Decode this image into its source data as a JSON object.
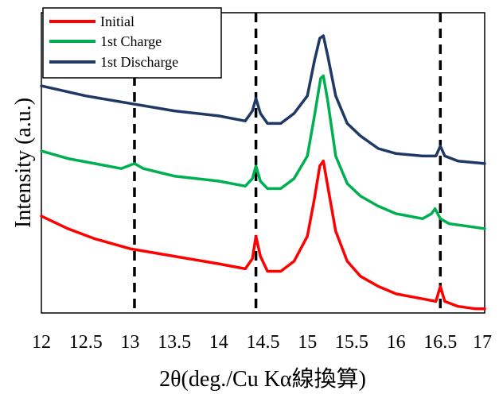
{
  "chart_data": {
    "type": "line",
    "title": "",
    "xlabel": "2θ(deg./Cu Kα線換算)",
    "ylabel": "Intensity (a.u.)",
    "xlim": [
      12,
      17
    ],
    "ylim": [
      0,
      1
    ],
    "x_ticks": [
      "12",
      "12.5",
      "13",
      "13.5",
      "14",
      "14.5",
      "15",
      "15.5",
      "16",
      "16.5",
      "17"
    ],
    "y_ticks_shown": false,
    "grid": false,
    "legend_position": "top-left",
    "reference_lines_x": [
      13.05,
      14.42,
      16.5
    ],
    "reference_line_style": "black dashed",
    "series": [
      {
        "name": "Initial",
        "color": "#ff0000",
        "points": [
          [
            12.0,
            0.38
          ],
          [
            12.3,
            0.33
          ],
          [
            12.6,
            0.29
          ],
          [
            13.0,
            0.25
          ],
          [
            13.5,
            0.22
          ],
          [
            14.0,
            0.19
          ],
          [
            14.3,
            0.17
          ],
          [
            14.38,
            0.21
          ],
          [
            14.42,
            0.3
          ],
          [
            14.47,
            0.22
          ],
          [
            14.55,
            0.16
          ],
          [
            14.7,
            0.16
          ],
          [
            14.85,
            0.2
          ],
          [
            15.0,
            0.3
          ],
          [
            15.08,
            0.45
          ],
          [
            15.14,
            0.58
          ],
          [
            15.18,
            0.6
          ],
          [
            15.23,
            0.5
          ],
          [
            15.32,
            0.32
          ],
          [
            15.45,
            0.2
          ],
          [
            15.6,
            0.14
          ],
          [
            15.8,
            0.1
          ],
          [
            16.0,
            0.07
          ],
          [
            16.3,
            0.05
          ],
          [
            16.45,
            0.04
          ],
          [
            16.5,
            0.1
          ],
          [
            16.55,
            0.04
          ],
          [
            16.7,
            0.02
          ],
          [
            16.9,
            0.01
          ],
          [
            17.0,
            0.01
          ]
        ]
      },
      {
        "name": "1st Charge",
        "color": "#00b050",
        "points": [
          [
            12.0,
            0.64
          ],
          [
            12.3,
            0.61
          ],
          [
            12.6,
            0.59
          ],
          [
            12.9,
            0.57
          ],
          [
            13.05,
            0.59
          ],
          [
            13.15,
            0.57
          ],
          [
            13.5,
            0.54
          ],
          [
            14.0,
            0.52
          ],
          [
            14.3,
            0.5
          ],
          [
            14.38,
            0.53
          ],
          [
            14.42,
            0.58
          ],
          [
            14.47,
            0.52
          ],
          [
            14.55,
            0.49
          ],
          [
            14.7,
            0.49
          ],
          [
            14.85,
            0.53
          ],
          [
            15.0,
            0.62
          ],
          [
            15.08,
            0.78
          ],
          [
            15.15,
            0.93
          ],
          [
            15.18,
            0.94
          ],
          [
            15.23,
            0.84
          ],
          [
            15.32,
            0.62
          ],
          [
            15.45,
            0.51
          ],
          [
            15.6,
            0.46
          ],
          [
            15.8,
            0.42
          ],
          [
            16.0,
            0.39
          ],
          [
            16.3,
            0.37
          ],
          [
            16.4,
            0.39
          ],
          [
            16.44,
            0.41
          ],
          [
            16.5,
            0.37
          ],
          [
            16.6,
            0.35
          ],
          [
            16.8,
            0.34
          ],
          [
            17.0,
            0.33
          ]
        ]
      },
      {
        "name": "1st Discharge",
        "color": "#1f3864",
        "points": [
          [
            12.0,
            0.9
          ],
          [
            12.5,
            0.86
          ],
          [
            13.0,
            0.83
          ],
          [
            13.5,
            0.8
          ],
          [
            14.0,
            0.78
          ],
          [
            14.3,
            0.76
          ],
          [
            14.38,
            0.8
          ],
          [
            14.42,
            0.85
          ],
          [
            14.47,
            0.79
          ],
          [
            14.55,
            0.75
          ],
          [
            14.7,
            0.75
          ],
          [
            14.85,
            0.79
          ],
          [
            15.0,
            0.86
          ],
          [
            15.08,
            1.0
          ],
          [
            15.14,
            1.09
          ],
          [
            15.18,
            1.1
          ],
          [
            15.23,
            1.02
          ],
          [
            15.32,
            0.86
          ],
          [
            15.45,
            0.75
          ],
          [
            15.6,
            0.7
          ],
          [
            15.8,
            0.65
          ],
          [
            16.0,
            0.63
          ],
          [
            16.3,
            0.62
          ],
          [
            16.45,
            0.62
          ],
          [
            16.5,
            0.66
          ],
          [
            16.55,
            0.62
          ],
          [
            16.7,
            0.6
          ],
          [
            17.0,
            0.59
          ]
        ]
      }
    ]
  }
}
